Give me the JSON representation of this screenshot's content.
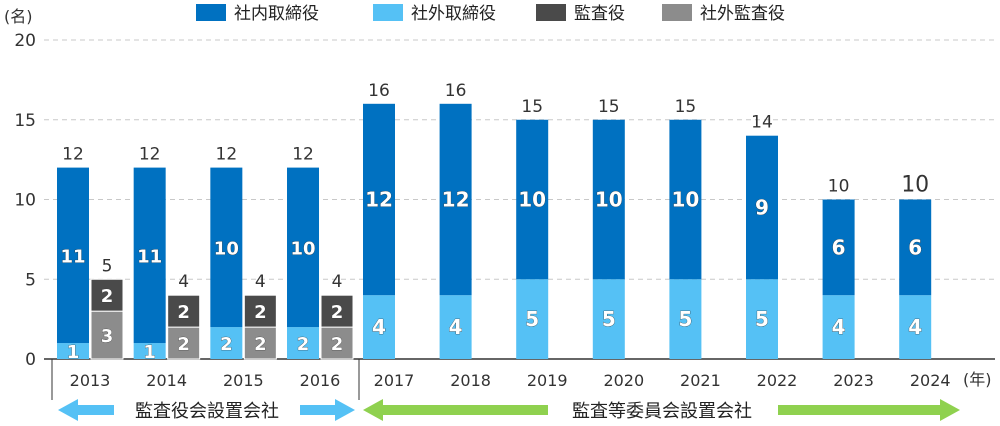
{
  "chart_data": {
    "type": "bar",
    "stacked": true,
    "unit_label": "(名)",
    "x_unit_label": "(年)",
    "ylim": [
      0,
      20
    ],
    "yticks": [
      0,
      5,
      10,
      15,
      20
    ],
    "grid": true,
    "legend_position": "top",
    "colors": {
      "internal": "#0071c1",
      "external": "#55c1f5",
      "auditor": "#4a4a4a",
      "external_auditor": "#8c8c8c",
      "arrow_blue": "#55c1f5",
      "arrow_green": "#8fd14f"
    },
    "legend": [
      {
        "name": "社内取締役",
        "color_key": "internal"
      },
      {
        "name": "社外取締役",
        "color_key": "external"
      },
      {
        "name": "監査役",
        "color_key": "auditor"
      },
      {
        "name": "社外監査役",
        "color_key": "external_auditor"
      }
    ],
    "categories": [
      "2013",
      "2014",
      "2015",
      "2016",
      "2017",
      "2018",
      "2019",
      "2020",
      "2021",
      "2022",
      "2023",
      "2024"
    ],
    "director_stack": {
      "internal": [
        11,
        11,
        10,
        10,
        12,
        12,
        10,
        10,
        10,
        9,
        6,
        6
      ],
      "external": [
        1,
        1,
        2,
        2,
        4,
        4,
        5,
        5,
        5,
        5,
        4,
        4
      ],
      "total": [
        12,
        12,
        12,
        12,
        16,
        16,
        15,
        15,
        15,
        14,
        10,
        10
      ]
    },
    "auditor_stack": {
      "auditor": [
        2,
        2,
        2,
        2,
        null,
        null,
        null,
        null,
        null,
        null,
        null,
        null
      ],
      "external_auditor": [
        3,
        2,
        2,
        2,
        null,
        null,
        null,
        null,
        null,
        null,
        null,
        null
      ],
      "total": [
        5,
        4,
        4,
        4,
        null,
        null,
        null,
        null,
        null,
        null,
        null,
        null
      ]
    },
    "periods": [
      {
        "label": "監査役会設置会社",
        "years": [
          "2013",
          "2016"
        ],
        "color_key": "arrow_blue"
      },
      {
        "label": "監査等委員会設置会社",
        "years": [
          "2017",
          "2024"
        ],
        "color_key": "arrow_green"
      }
    ]
  }
}
